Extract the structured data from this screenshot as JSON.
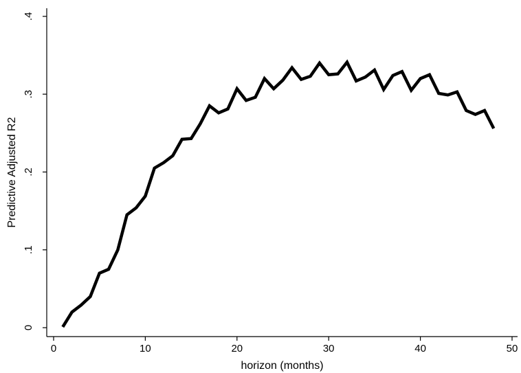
{
  "chart_data": {
    "type": "line",
    "title": "",
    "xlabel": "horizon (months)",
    "ylabel": "Predictive Adjusted R2",
    "xlim": [
      0,
      50
    ],
    "ylim": [
      0,
      0.4
    ],
    "x_ticks": [
      0,
      10,
      20,
      30,
      40,
      50
    ],
    "x_tick_labels": [
      "0",
      "10",
      "20",
      "30",
      "40",
      "50"
    ],
    "y_ticks": [
      0,
      0.1,
      0.2,
      0.3,
      0.4
    ],
    "y_tick_labels": [
      "0",
      ".1",
      ".2",
      ".3",
      ".4"
    ],
    "grid": false,
    "line_color": "#000000",
    "series": [
      {
        "x": [
          1,
          2,
          3,
          4,
          5,
          6,
          7,
          8,
          9,
          10,
          11,
          12,
          13,
          14,
          15,
          16,
          17,
          18,
          19,
          20,
          21,
          22,
          23,
          24,
          25,
          26,
          27,
          28,
          29,
          30,
          31,
          32,
          33,
          34,
          35,
          36,
          37,
          38,
          39,
          40,
          41,
          42,
          43,
          44,
          45,
          46,
          47,
          48
        ],
        "values": [
          0.001,
          0.02,
          0.029,
          0.04,
          0.07,
          0.075,
          0.1,
          0.145,
          0.154,
          0.169,
          0.205,
          0.212,
          0.221,
          0.242,
          0.243,
          0.262,
          0.285,
          0.276,
          0.281,
          0.307,
          0.292,
          0.296,
          0.32,
          0.307,
          0.318,
          0.334,
          0.319,
          0.323,
          0.34,
          0.325,
          0.326,
          0.341,
          0.317,
          0.322,
          0.331,
          0.306,
          0.324,
          0.329,
          0.305,
          0.32,
          0.325,
          0.301,
          0.299,
          0.303,
          0.279,
          0.274,
          0.279,
          0.256
        ]
      }
    ]
  }
}
